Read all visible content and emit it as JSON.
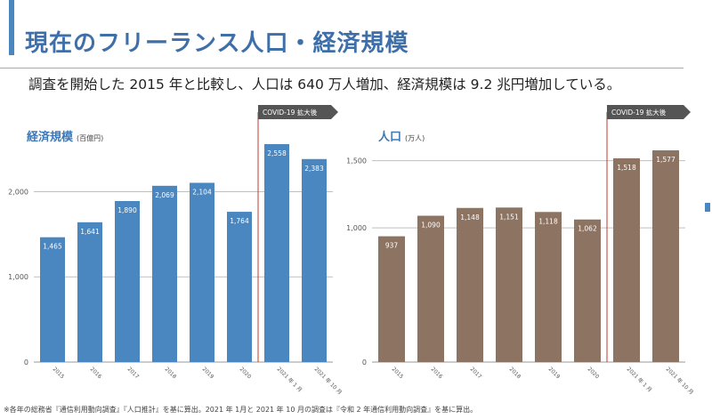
{
  "page": {
    "title": "現在のフリーランス人口・経済規模",
    "subtitle": "調査を開始した 2015 年と比較し、人口は 640 万人増加、経済規模は 9.2 兆円増加している。",
    "footnote": "※各年の総務省『通信利用動向調査』『人口推計』を基に算出。2021 年 1月と 2021 年 10 月の調査は『令和 2 年通信利用動向調査』を基に算出。"
  },
  "chart_data": [
    {
      "type": "bar",
      "title": "経済規模",
      "unit": "(百億円)",
      "categories": [
        "2015",
        "2016",
        "2017",
        "2018",
        "2019",
        "2020",
        "2021 年 1 月",
        "2021 年 10 月"
      ],
      "values": [
        1465,
        1641,
        1890,
        2069,
        2104,
        1764,
        2558,
        2383
      ],
      "value_labels": [
        "1,465",
        "1,641",
        "1,890",
        "2,069",
        "2,104",
        "1,764",
        "2,558",
        "2,383"
      ],
      "ylim": [
        0,
        2600
      ],
      "yticks": [
        0,
        1000,
        2000
      ],
      "ytick_labels": [
        "0",
        "1,000",
        "2,000"
      ],
      "grid": true,
      "bar_color": "#4a86c0",
      "annotation": {
        "text": "COVID-19 拡大後",
        "start_index": 6
      }
    },
    {
      "type": "bar",
      "title": "人口",
      "unit": "(万人)",
      "categories": [
        "2015",
        "2016",
        "2017",
        "2018",
        "2019",
        "2020",
        "2021 年 1 月",
        "2021 年 10 月"
      ],
      "values": [
        937,
        1090,
        1148,
        1151,
        1118,
        1062,
        1518,
        1577
      ],
      "value_labels": [
        "937",
        "1,090",
        "1,148",
        "1,151",
        "1,118",
        "1,062",
        "1,518",
        "1,577"
      ],
      "ylim": [
        0,
        1650
      ],
      "yticks": [
        0,
        1000,
        1500
      ],
      "ytick_labels": [
        "0",
        "1,000",
        "1,500"
      ],
      "grid": true,
      "bar_color": "#8c7362",
      "annotation": {
        "text": "COVID-19 拡大後",
        "start_index": 6
      }
    }
  ],
  "colors": {
    "accent": "#4a86c0",
    "title": "#3f6fa8",
    "covid_line": "#c0392b",
    "arrow": "#555555"
  }
}
